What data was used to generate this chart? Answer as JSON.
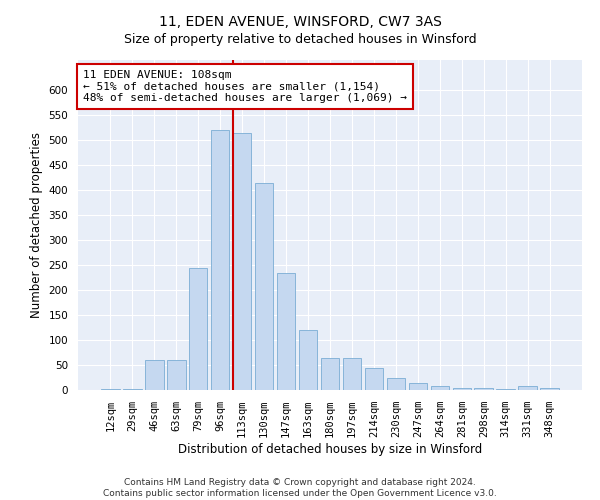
{
  "title": "11, EDEN AVENUE, WINSFORD, CW7 3AS",
  "subtitle": "Size of property relative to detached houses in Winsford",
  "xlabel": "Distribution of detached houses by size in Winsford",
  "ylabel": "Number of detached properties",
  "categories": [
    "12sqm",
    "29sqm",
    "46sqm",
    "63sqm",
    "79sqm",
    "96sqm",
    "113sqm",
    "130sqm",
    "147sqm",
    "163sqm",
    "180sqm",
    "197sqm",
    "214sqm",
    "230sqm",
    "247sqm",
    "264sqm",
    "281sqm",
    "298sqm",
    "314sqm",
    "331sqm",
    "348sqm"
  ],
  "values": [
    2,
    2,
    60,
    60,
    245,
    520,
    515,
    415,
    235,
    120,
    65,
    65,
    45,
    25,
    15,
    8,
    5,
    5,
    2,
    8,
    5
  ],
  "bar_color": "#c5d8f0",
  "bar_edgecolor": "#7aadd4",
  "property_line_label": "11 EDEN AVENUE: 108sqm",
  "annotation_line1": "← 51% of detached houses are smaller (1,154)",
  "annotation_line2": "48% of semi-detached houses are larger (1,069) →",
  "annotation_box_color": "#ffffff",
  "annotation_box_edgecolor": "#cc0000",
  "vline_color": "#cc0000",
  "vline_xindex": 6,
  "ylim": [
    0,
    660
  ],
  "yticks": [
    0,
    50,
    100,
    150,
    200,
    250,
    300,
    350,
    400,
    450,
    500,
    550,
    600
  ],
  "bg_color": "#e8eef8",
  "grid_color": "#ffffff",
  "footer_line1": "Contains HM Land Registry data © Crown copyright and database right 2024.",
  "footer_line2": "Contains public sector information licensed under the Open Government Licence v3.0.",
  "title_fontsize": 10,
  "subtitle_fontsize": 9,
  "xlabel_fontsize": 8.5,
  "ylabel_fontsize": 8.5,
  "tick_fontsize": 7.5,
  "annotation_fontsize": 8,
  "footer_fontsize": 6.5
}
